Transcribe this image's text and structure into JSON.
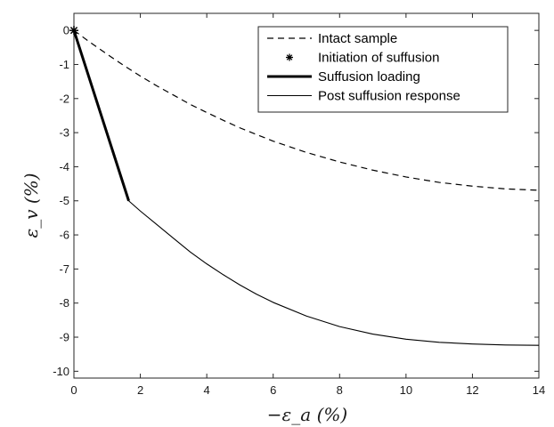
{
  "chart_data": {
    "type": "line",
    "xlabel": "−ε_a (%)",
    "ylabel": "ε_v (%)",
    "xlim": [
      0,
      14
    ],
    "ylim": [
      -10.2,
      0.5
    ],
    "xticks": [
      0,
      2,
      4,
      6,
      8,
      10,
      12,
      14
    ],
    "yticks": [
      0,
      -1,
      -2,
      -3,
      -4,
      -5,
      -6,
      -7,
      -8,
      -9,
      -10
    ],
    "grid": false,
    "legend_position": "top-right",
    "series": [
      {
        "name": "Intact sample",
        "style": "dashed",
        "color": "#000000",
        "x": [
          0,
          0.5,
          1,
          1.5,
          2,
          2.5,
          3,
          3.5,
          4,
          4.5,
          5,
          6,
          7,
          8,
          9,
          10,
          11,
          12,
          13,
          14
        ],
        "y": [
          0,
          -0.36,
          -0.7,
          -1.03,
          -1.34,
          -1.63,
          -1.9,
          -2.17,
          -2.41,
          -2.64,
          -2.86,
          -3.25,
          -3.58,
          -3.86,
          -4.1,
          -4.3,
          -4.46,
          -4.57,
          -4.65,
          -4.69
        ]
      },
      {
        "name": "Initiation of suffusion",
        "style": "marker",
        "marker": "asterisk",
        "color": "#000000",
        "x": [
          0
        ],
        "y": [
          0
        ]
      },
      {
        "name": "Suffusion loading",
        "style": "thick",
        "color": "#000000",
        "x": [
          0,
          1.65
        ],
        "y": [
          0,
          -5
        ]
      },
      {
        "name": "Post suffusion response",
        "style": "thin",
        "color": "#000000",
        "x": [
          1.65,
          2,
          2.5,
          3,
          3.5,
          4,
          4.5,
          5,
          5.5,
          6,
          7,
          8,
          9,
          10,
          11,
          12,
          13,
          14
        ],
        "y": [
          -5,
          -5.3,
          -5.7,
          -6.1,
          -6.5,
          -6.85,
          -7.17,
          -7.47,
          -7.74,
          -7.98,
          -8.38,
          -8.69,
          -8.91,
          -9.06,
          -9.15,
          -9.2,
          -9.23,
          -9.24
        ]
      }
    ]
  }
}
